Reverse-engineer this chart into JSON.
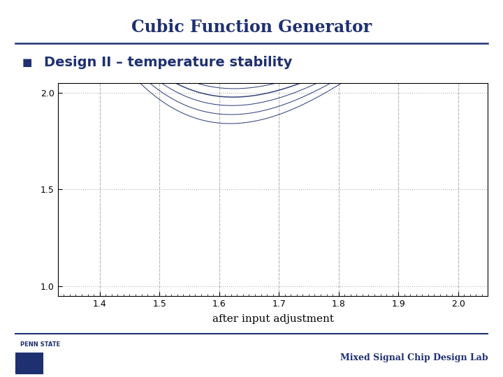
{
  "title": "Cubic Function Generator",
  "subtitle": "Design II – temperature stability",
  "xlabel": "after input adjustment",
  "xlim": [
    1.33,
    2.05
  ],
  "ylim": [
    0.95,
    2.05
  ],
  "xticks": [
    1.4,
    1.5,
    1.6,
    1.7,
    1.8,
    1.9,
    2.0
  ],
  "yticks": [
    1.0,
    1.5,
    2.0
  ],
  "bg_color": "#FFFFFF",
  "title_color": "#1F3070",
  "subtitle_color": "#1F3070",
  "curve_color": "#1F3070",
  "grid_color": "#AAAAAA",
  "x_start": 1.33,
  "x_end": 2.06,
  "base_coeffs": [
    -10.2,
    56.5,
    -102.8,
    63.6
  ],
  "temp_variations": [
    -0.05,
    -0.033,
    -0.016,
    0.0,
    0.016,
    0.033,
    0.05
  ],
  "spread_factor": 1.8,
  "footer_text": "Mixed Signal Chip Design Lab",
  "footer_color": "#1F3070",
  "pennstate_text": "PENN STATE"
}
